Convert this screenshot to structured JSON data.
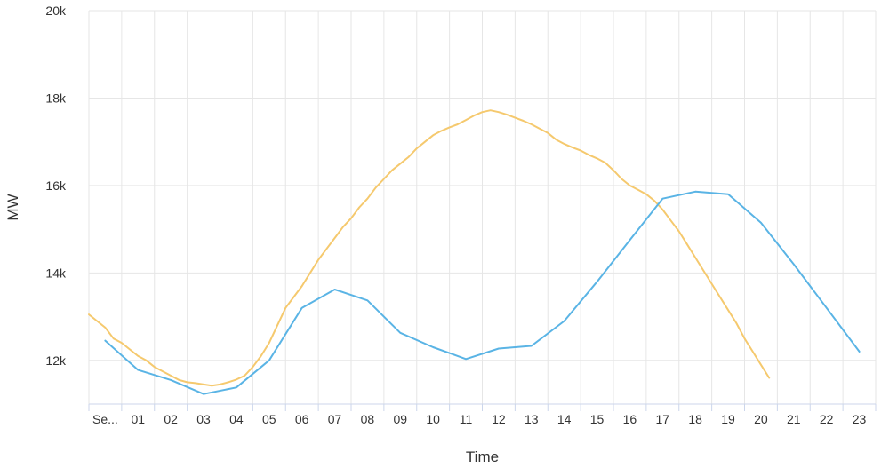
{
  "chart_data": {
    "type": "line",
    "title": "",
    "xlabel": "Time",
    "ylabel": "MW",
    "x_tick_labels": [
      "Se...",
      "01",
      "02",
      "03",
      "04",
      "05",
      "06",
      "07",
      "08",
      "09",
      "10",
      "11",
      "12",
      "13",
      "14",
      "15",
      "16",
      "17",
      "18",
      "19",
      "20",
      "21",
      "22",
      "23"
    ],
    "y_tick_labels": [
      "12k",
      "14k",
      "16k",
      "18k",
      "20k"
    ],
    "y_ticks": [
      12000,
      14000,
      16000,
      18000,
      20000
    ],
    "xlim": [
      0,
      24
    ],
    "ylim": [
      11000,
      20000
    ],
    "grid": true,
    "legend": "none",
    "series": [
      {
        "color": "#f5c96e",
        "points": [
          [
            0,
            13050
          ],
          [
            0.25,
            12900
          ],
          [
            0.5,
            12750
          ],
          [
            0.75,
            12500
          ],
          [
            1,
            12400
          ],
          [
            1.25,
            12250
          ],
          [
            1.5,
            12100
          ],
          [
            1.75,
            12000
          ],
          [
            2,
            11850
          ],
          [
            2.25,
            11750
          ],
          [
            2.5,
            11650
          ],
          [
            2.75,
            11550
          ],
          [
            3,
            11500
          ],
          [
            3.25,
            11480
          ],
          [
            3.5,
            11450
          ],
          [
            3.75,
            11420
          ],
          [
            4,
            11450
          ],
          [
            4.25,
            11500
          ],
          [
            4.5,
            11560
          ],
          [
            4.75,
            11650
          ],
          [
            5,
            11850
          ],
          [
            5.25,
            12100
          ],
          [
            5.5,
            12400
          ],
          [
            5.75,
            12800
          ],
          [
            6,
            13200
          ],
          [
            6.25,
            13450
          ],
          [
            6.5,
            13700
          ],
          [
            6.75,
            14000
          ],
          [
            7,
            14300
          ],
          [
            7.25,
            14550
          ],
          [
            7.5,
            14800
          ],
          [
            7.75,
            15050
          ],
          [
            8,
            15250
          ],
          [
            8.25,
            15500
          ],
          [
            8.5,
            15700
          ],
          [
            8.75,
            15950
          ],
          [
            9,
            16150
          ],
          [
            9.25,
            16350
          ],
          [
            9.5,
            16500
          ],
          [
            9.75,
            16650
          ],
          [
            10,
            16850
          ],
          [
            10.25,
            17000
          ],
          [
            10.5,
            17150
          ],
          [
            10.75,
            17250
          ],
          [
            11,
            17330
          ],
          [
            11.25,
            17400
          ],
          [
            11.5,
            17500
          ],
          [
            11.75,
            17600
          ],
          [
            12,
            17680
          ],
          [
            12.25,
            17720
          ],
          [
            12.5,
            17680
          ],
          [
            12.75,
            17620
          ],
          [
            13,
            17550
          ],
          [
            13.25,
            17480
          ],
          [
            13.5,
            17400
          ],
          [
            13.75,
            17300
          ],
          [
            14,
            17200
          ],
          [
            14.25,
            17050
          ],
          [
            14.5,
            16950
          ],
          [
            14.75,
            16870
          ],
          [
            15,
            16800
          ],
          [
            15.25,
            16700
          ],
          [
            15.5,
            16620
          ],
          [
            15.75,
            16520
          ],
          [
            16,
            16350
          ],
          [
            16.25,
            16150
          ],
          [
            16.5,
            16000
          ],
          [
            16.75,
            15900
          ],
          [
            17,
            15800
          ],
          [
            17.25,
            15650
          ],
          [
            17.5,
            15450
          ],
          [
            17.75,
            15200
          ],
          [
            18,
            14950
          ],
          [
            18.25,
            14650
          ],
          [
            18.5,
            14350
          ],
          [
            18.75,
            14050
          ],
          [
            19,
            13750
          ],
          [
            19.25,
            13450
          ],
          [
            19.5,
            13150
          ],
          [
            19.75,
            12850
          ],
          [
            20,
            12500
          ],
          [
            20.25,
            12200
          ],
          [
            20.5,
            11900
          ],
          [
            20.75,
            11600
          ]
        ]
      },
      {
        "color": "#5ab4e5",
        "points": [
          [
            0.5,
            12450
          ],
          [
            1.5,
            11780
          ],
          [
            2.5,
            11550
          ],
          [
            3.5,
            11230
          ],
          [
            4.5,
            11380
          ],
          [
            5.5,
            12000
          ],
          [
            6.5,
            13200
          ],
          [
            7.5,
            13620
          ],
          [
            8.5,
            13370
          ],
          [
            9.5,
            12630
          ],
          [
            10.5,
            12300
          ],
          [
            11.5,
            12030
          ],
          [
            12.5,
            12270
          ],
          [
            13.5,
            12330
          ],
          [
            14.5,
            12900
          ],
          [
            15.5,
            13800
          ],
          [
            16.5,
            14750
          ],
          [
            17.5,
            15700
          ],
          [
            18.5,
            15860
          ],
          [
            19.5,
            15800
          ],
          [
            20.5,
            15150
          ],
          [
            21.5,
            14200
          ],
          [
            22.5,
            13200
          ],
          [
            23.5,
            12200
          ]
        ]
      }
    ]
  }
}
